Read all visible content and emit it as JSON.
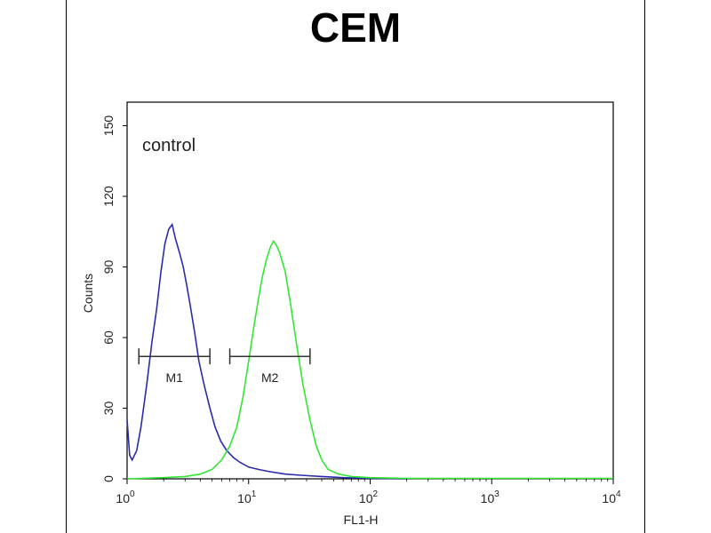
{
  "chart_data": {
    "type": "line",
    "title": "CEM",
    "xlabel": "FL1-H",
    "ylabel": "Counts",
    "xscale": "log",
    "xlim": [
      1,
      10000
    ],
    "ylim": [
      0,
      160
    ],
    "x_ticks": [
      {
        "base": "10",
        "exp": "0",
        "value": 1
      },
      {
        "base": "10",
        "exp": "1",
        "value": 10
      },
      {
        "base": "10",
        "exp": "2",
        "value": 100
      },
      {
        "base": "10",
        "exp": "3",
        "value": 1000
      },
      {
        "base": "10",
        "exp": "4",
        "value": 10000
      }
    ],
    "y_ticks": [
      "0",
      "30",
      "60",
      "90",
      "120",
      "150"
    ],
    "annotation": "control",
    "series": [
      {
        "color": "#2b2bb0",
        "x": [
          1.0,
          1.05,
          1.1,
          1.2,
          1.3,
          1.45,
          1.6,
          1.75,
          1.9,
          2.05,
          2.2,
          2.35,
          2.5,
          2.7,
          2.9,
          3.1,
          3.3,
          3.6,
          3.9,
          4.3,
          4.8,
          5.3,
          5.9,
          6.6,
          7.5,
          8.5,
          10,
          12,
          15,
          20,
          27,
          40,
          60,
          100,
          200
        ],
        "y": [
          25,
          10,
          8,
          12,
          22,
          40,
          58,
          72,
          88,
          100,
          106,
          108,
          102,
          96,
          90,
          82,
          74,
          62,
          50,
          40,
          30,
          22,
          16,
          12,
          9,
          7,
          5,
          4,
          3,
          2,
          1.5,
          1,
          0.5,
          0.2,
          0
        ]
      },
      {
        "color": "#33e633",
        "x": [
          1,
          2,
          3,
          4,
          5,
          6,
          7,
          8,
          9,
          10,
          11,
          12,
          13,
          14,
          15,
          16,
          17,
          18,
          20,
          22,
          25,
          28,
          32,
          36,
          40,
          45,
          55,
          70,
          100,
          200,
          500,
          1000,
          10000
        ],
        "y": [
          0,
          0.5,
          1,
          2,
          4,
          8,
          14,
          22,
          35,
          50,
          64,
          76,
          86,
          93,
          98,
          101,
          99,
          96,
          88,
          75,
          56,
          40,
          25,
          14,
          8,
          4,
          2,
          1,
          0.5,
          0.2,
          0.2,
          0.2,
          0.2
        ]
      }
    ],
    "markers": [
      {
        "label": "M1",
        "range": [
          1.25,
          4.8
        ],
        "y": 52
      },
      {
        "label": "M2",
        "range": [
          7.0,
          32
        ],
        "y": 52
      }
    ]
  }
}
